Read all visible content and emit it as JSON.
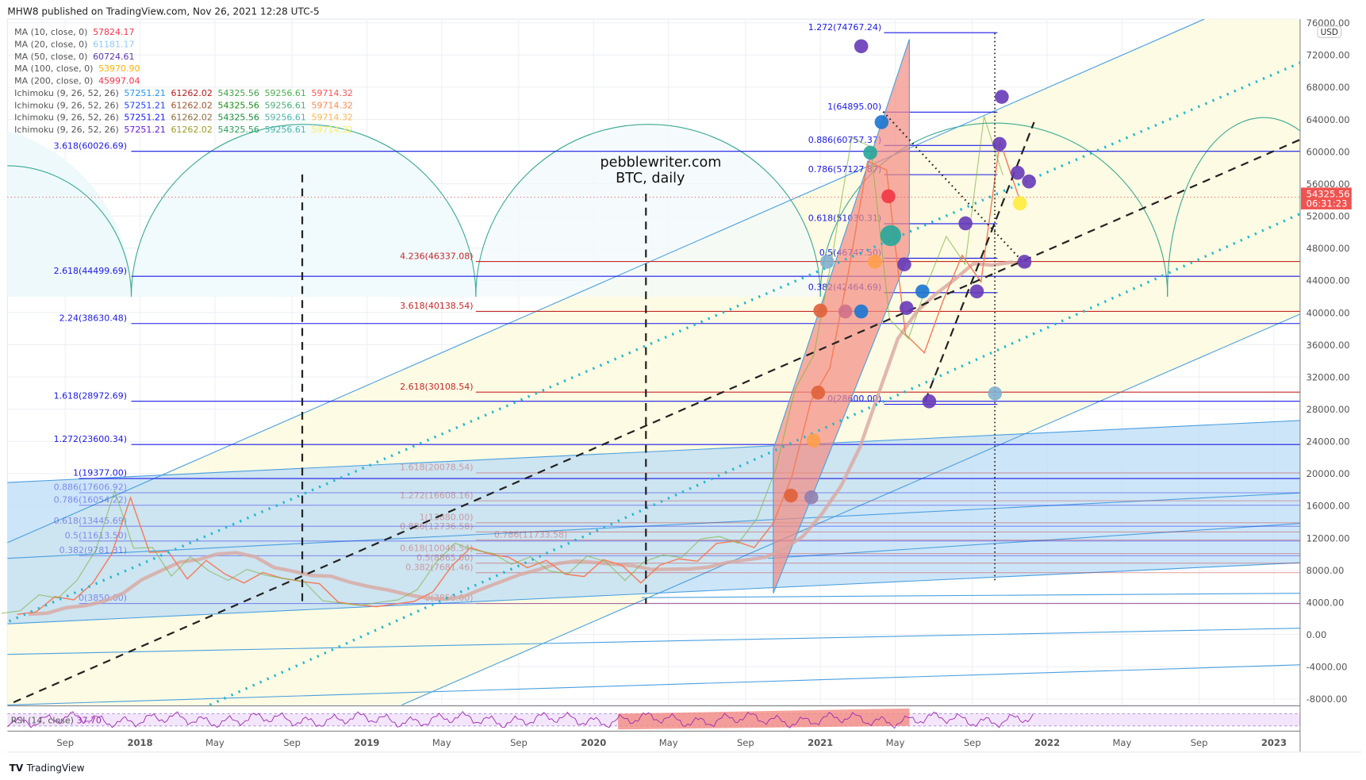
{
  "header": {
    "published": "MHW8 published on TradingView.com, Nov 26, 2021 12:28 UTC-5"
  },
  "footer": {
    "brand": "TradingView"
  },
  "watermark": {
    "line1": "pebblewriter.com",
    "line2": "BTC, daily"
  },
  "legend": [
    {
      "label": "MA (10, close, 0)",
      "values": [
        "57824.17"
      ],
      "colors": [
        "#f23645"
      ]
    },
    {
      "label": "MA (20, close, 0)",
      "values": [
        "61181.17"
      ],
      "colors": [
        "#90caf9"
      ]
    },
    {
      "label": "MA (50, close, 0)",
      "values": [
        "60724.61"
      ],
      "colors": [
        "#5e35b1"
      ]
    },
    {
      "label": "MA (100, close, 0)",
      "values": [
        "53970.90"
      ],
      "colors": [
        "#ffb300"
      ]
    },
    {
      "label": "MA (200, close, 0)",
      "values": [
        "45997.04"
      ],
      "colors": [
        "#f23645"
      ]
    },
    {
      "label": "Ichimoku (9, 26, 52, 26)",
      "values": [
        "57251.21",
        "61262.02",
        "54325.56",
        "59256.61",
        "59714.32"
      ],
      "colors": [
        "#2196f3",
        "#b71c1c",
        "#43a047",
        "#4caf50",
        "#ff5252"
      ]
    },
    {
      "label": "Ichimoku (9, 26, 52, 26)",
      "values": [
        "57251.21",
        "61262.02",
        "54325.56",
        "59256.61",
        "59714.32"
      ],
      "colors": [
        "#1e40ff",
        "#a0522d",
        "#1b8f1b",
        "#4caf7a",
        "#ff8a50"
      ]
    },
    {
      "label": "Ichimoku (9, 26, 52, 26)",
      "values": [
        "57251.21",
        "61262.02",
        "54325.56",
        "59256.61",
        "59714.32"
      ],
      "colors": [
        "#1a1aff",
        "#8d6e3c",
        "#1a8f3a",
        "#4db6ac",
        "#ffb74d"
      ]
    },
    {
      "label": "Ichimoku (9, 26, 52, 26)",
      "values": [
        "57251.21",
        "61262.02",
        "54325.56",
        "59256.61",
        "59714.32"
      ],
      "colors": [
        "#6a1bd9",
        "#9e9d24",
        "#26a05a",
        "#4db6ac",
        "#ffee58"
      ]
    }
  ],
  "price_scale": {
    "currency": "USD",
    "current_price": "54325.56",
    "countdown": "06:31:23",
    "current_price_color": "#ef5350"
  },
  "rsi": {
    "label": "RSI (14, close)",
    "value": "37.70",
    "color": "#9c27b0"
  },
  "chart_data": {
    "type": "line",
    "symbol": "BTC",
    "interval": "daily",
    "ylim": [
      -8000,
      76000
    ],
    "yticks": [
      "76000.00",
      "72000.00",
      "68000.00",
      "64000.00",
      "60000.00",
      "56000.00",
      "52000.00",
      "48000.00",
      "44000.00",
      "40000.00",
      "36000.00",
      "32000.00",
      "28000.00",
      "24000.00",
      "20000.00",
      "16000.00",
      "12000.00",
      "8000.00",
      "4000.00",
      "0.00",
      "-4000.00",
      "-8000.00"
    ],
    "xticks": [
      {
        "label": "Sep",
        "t": 2017.67
      },
      {
        "label": "2018",
        "t": 2018
      },
      {
        "label": "May",
        "t": 2018.33
      },
      {
        "label": "Sep",
        "t": 2018.67
      },
      {
        "label": "2019",
        "t": 2019
      },
      {
        "label": "May",
        "t": 2019.33
      },
      {
        "label": "Sep",
        "t": 2019.67
      },
      {
        "label": "2020",
        "t": 2020
      },
      {
        "label": "May",
        "t": 2020.33
      },
      {
        "label": "Sep",
        "t": 2020.67
      },
      {
        "label": "2021",
        "t": 2021
      },
      {
        "label": "May",
        "t": 2021.33
      },
      {
        "label": "Sep",
        "t": 2021.67
      },
      {
        "label": "2022",
        "t": 2022
      },
      {
        "label": "May",
        "t": 2022.33
      },
      {
        "label": "Sep",
        "t": 2022.67
      },
      {
        "label": "2023",
        "t": 2023
      }
    ],
    "price_series": {
      "dates": [
        "2017-06",
        "2017-07",
        "2017-08",
        "2017-09",
        "2017-10",
        "2017-11",
        "2017-12",
        "2018-01",
        "2018-02",
        "2018-03",
        "2018-04",
        "2018-05",
        "2018-06",
        "2018-07",
        "2018-08",
        "2018-09",
        "2018-10",
        "2018-11",
        "2018-12",
        "2019-01",
        "2019-02",
        "2019-03",
        "2019-04",
        "2019-05",
        "2019-06",
        "2019-07",
        "2019-08",
        "2019-09",
        "2019-10",
        "2019-11",
        "2019-12",
        "2020-01",
        "2020-02",
        "2020-03",
        "2020-04",
        "2020-05",
        "2020-06",
        "2020-07",
        "2020-08",
        "2020-09",
        "2020-10",
        "2020-11",
        "2020-12",
        "2021-01",
        "2021-02",
        "2021-03",
        "2021-04",
        "2021-05",
        "2021-06",
        "2021-07",
        "2021-08",
        "2021-09",
        "2021-10",
        "2021-11"
      ],
      "values": [
        2500,
        2800,
        4700,
        4300,
        6400,
        10000,
        17000,
        10200,
        10300,
        6900,
        9200,
        7500,
        6400,
        7700,
        7000,
        6600,
        6300,
        4000,
        3700,
        3450,
        3800,
        4100,
        5300,
        8500,
        10800,
        10000,
        9600,
        8300,
        9200,
        7500,
        7200,
        9300,
        8600,
        6400,
        8600,
        9400,
        9100,
        11300,
        11600,
        10800,
        13800,
        19700,
        29000,
        33100,
        45200,
        58800,
        57700,
        37300,
        35000,
        41500,
        47100,
        43800,
        61300,
        54325
      ]
    },
    "fib_left": [
      {
        "label": "3.618(60026.69)",
        "price": 60026.69
      },
      {
        "label": "2.618(44499.69)",
        "price": 44499.69
      },
      {
        "label": "2.24(38630.48)",
        "price": 38630.48
      },
      {
        "label": "1.618(28972.69)",
        "price": 28972.69
      },
      {
        "label": "1.272(23600.34)",
        "price": 23600.34
      },
      {
        "label": "1(19377.00)",
        "price": 19377.0
      },
      {
        "label": "0.886(17606.92)",
        "price": 17606.92
      },
      {
        "label": "0.786(16054.22)",
        "price": 16054.22
      },
      {
        "label": "0.618(13445.69)",
        "price": 13445.69
      },
      {
        "label": "0.5(11613.50)",
        "price": 11613.5
      },
      {
        "label": "0.382(9781.31)",
        "price": 9781.31
      },
      {
        "label": "0(3850.00)",
        "price": 3850.0
      }
    ],
    "fib_mid": [
      {
        "label": "4.236(46337.08)",
        "price": 46337.08
      },
      {
        "label": "3.618(40138.54)",
        "price": 40138.54
      },
      {
        "label": "2.618(30108.54)",
        "price": 30108.54
      },
      {
        "label": "1.618(20078.54)",
        "price": 20078.54
      },
      {
        "label": "1.272(16608.16)",
        "price": 16608.16
      },
      {
        "label": "1(13880.00)",
        "price": 13880.0
      },
      {
        "label": "0.886(12736.58)",
        "price": 12736.58
      },
      {
        "label": "0.786(11733.58)",
        "price": 11733.58
      },
      {
        "label": "0.618(10048.54)",
        "price": 10048.54
      },
      {
        "label": "0.5(8865.00)",
        "price": 8865.0
      },
      {
        "label": "0.382(7681.46)",
        "price": 7681.46
      },
      {
        "label": "0(3850.00)",
        "price": 3850.0
      }
    ],
    "fib_right": [
      {
        "label": "1.272(74767.24)",
        "price": 74767.24
      },
      {
        "label": "1(64895.00)",
        "price": 64895.0
      },
      {
        "label": "0.886(60757.37)",
        "price": 60757.37
      },
      {
        "label": "0.786(57127.87)",
        "price": 57127.87
      },
      {
        "label": "0.618(51030.31)",
        "price": 51030.31
      },
      {
        "label": "0.5(46747.50)",
        "price": 46747.5
      },
      {
        "label": "0.382(42464.69)",
        "price": 42464.69
      },
      {
        "label": "0(28600.00)",
        "price": 28600.0
      }
    ],
    "markers": [
      {
        "t": 2021.18,
        "p": 73084,
        "color": "#673ab7"
      },
      {
        "t": 2021.27,
        "p": 63653,
        "color": "#1976d2"
      },
      {
        "t": 2021.22,
        "p": 59859,
        "color": "#26a69a"
      },
      {
        "t": 2021.3,
        "p": 54440,
        "color": "#f23645"
      },
      {
        "t": 2021.31,
        "p": 49561,
        "color": "#26a69a",
        "big": true
      },
      {
        "t": 2021.03,
        "p": 46309,
        "color": "#7fb0d0"
      },
      {
        "t": 2021.24,
        "p": 46309,
        "color": "#ff9f4a"
      },
      {
        "t": 2021.37,
        "p": 45984,
        "color": "#673ab7"
      },
      {
        "t": 2021.0,
        "p": 40238,
        "color": "#e0603a"
      },
      {
        "t": 2021.11,
        "p": 40130,
        "color": "#d0708a"
      },
      {
        "t": 2021.18,
        "p": 40130,
        "color": "#1976d2"
      },
      {
        "t": 2021.38,
        "p": 40564,
        "color": "#673ab7"
      },
      {
        "t": 2021.45,
        "p": 42623,
        "color": "#1976d2"
      },
      {
        "t": 2021.64,
        "p": 51079,
        "color": "#673ab7"
      },
      {
        "t": 2021.8,
        "p": 66797,
        "color": "#673ab7"
      },
      {
        "t": 2021.79,
        "p": 60943,
        "color": "#673ab7"
      },
      {
        "t": 2021.87,
        "p": 57366,
        "color": "#673ab7"
      },
      {
        "t": 2021.92,
        "p": 56282,
        "color": "#673ab7"
      },
      {
        "t": 2021.88,
        "p": 53572,
        "color": "#ffeb3b"
      },
      {
        "t": 2021.9,
        "p": 46309,
        "color": "#673ab7"
      },
      {
        "t": 2021.69,
        "p": 42623,
        "color": "#673ab7"
      },
      {
        "t": 2021.48,
        "p": 28965,
        "color": "#673ab7"
      },
      {
        "t": 2021.77,
        "p": 29941,
        "color": "#7fb0d0"
      },
      {
        "t": 2020.99,
        "p": 30050,
        "color": "#e0603a"
      },
      {
        "t": 2020.97,
        "p": 24088,
        "color": "#ff9f4a"
      },
      {
        "t": 2020.87,
        "p": 17258,
        "color": "#e0603a"
      },
      {
        "t": 2020.96,
        "p": 17041,
        "color": "#9080b0"
      }
    ],
    "grid": true
  }
}
